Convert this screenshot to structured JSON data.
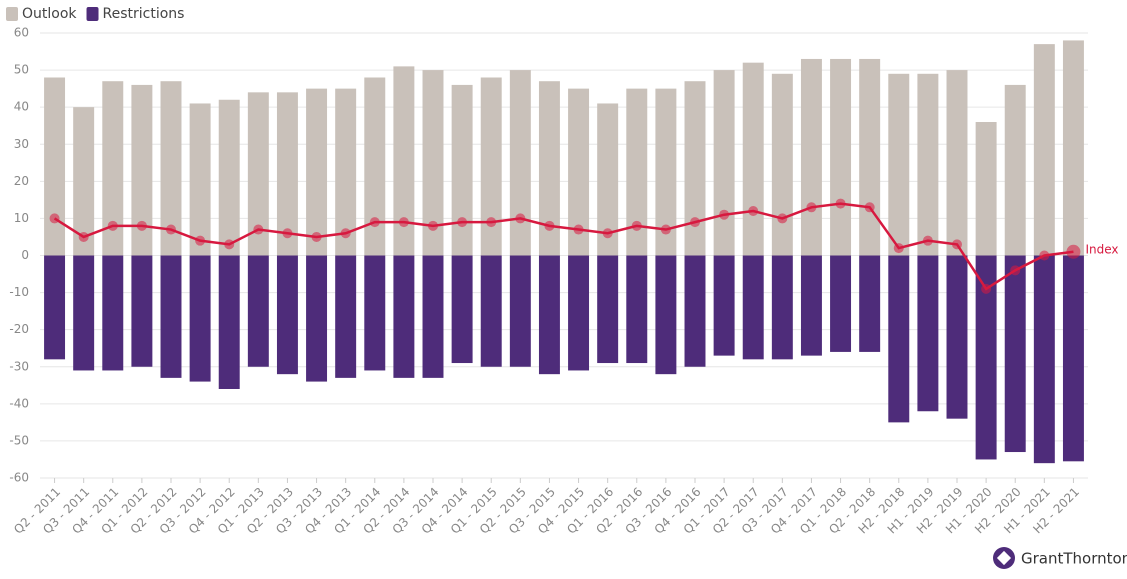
{
  "chart_data": {
    "type": "bar",
    "stacked": false,
    "categories": [
      "Q2 - 2011",
      "Q3 - 2011",
      "Q4 - 2011",
      "Q1 - 2012",
      "Q2 - 2012",
      "Q3 - 2012",
      "Q4 - 2012",
      "Q1 - 2013",
      "Q2 - 2013",
      "Q3 - 2013",
      "Q4 - 2013",
      "Q1 - 2014",
      "Q2 - 2014",
      "Q3 - 2014",
      "Q4 - 2014",
      "Q1 - 2015",
      "Q2 - 2015",
      "Q3 - 2015",
      "Q4 - 2015",
      "Q1 - 2016",
      "Q2 - 2016",
      "Q3 - 2016",
      "Q4 - 2016",
      "Q1 - 2017",
      "Q2 - 2017",
      "Q3 - 2017",
      "Q4 - 2017",
      "Q1 - 2018",
      "Q2 - 2018",
      "H2 - 2018",
      "H1 - 2019",
      "H2 - 2019",
      "H1 - 2020",
      "H2 - 2020",
      "H1 - 2021",
      "H2 - 2021"
    ],
    "series": [
      {
        "name": "Outlook",
        "type": "bar",
        "color": "#c9c1ba",
        "values": [
          48,
          40,
          47,
          46,
          47,
          41,
          42,
          44,
          44,
          45,
          45,
          48,
          51,
          50,
          46,
          48,
          50,
          47,
          45,
          41,
          45,
          45,
          47,
          50,
          52,
          49,
          53,
          53,
          53,
          49,
          49,
          50,
          36,
          46,
          57,
          58
        ]
      },
      {
        "name": "Restrictions",
        "type": "bar",
        "color": "#4e2c7a",
        "values": [
          -28,
          -31,
          -31,
          -30,
          -33,
          -34,
          -36,
          -30,
          -32,
          -34,
          -33,
          -31,
          -33,
          -33,
          -29,
          -30,
          -30,
          -32,
          -31,
          -29,
          -29,
          -32,
          -30,
          -27,
          -28,
          -28,
          -27,
          -26,
          -26,
          -45,
          -42,
          -44,
          -55,
          -53,
          -56,
          -55.5
        ]
      },
      {
        "name": "Index",
        "type": "line",
        "color": "#d7193f",
        "values": [
          10,
          5,
          8,
          8,
          7,
          4,
          3,
          7,
          6,
          5,
          6,
          9,
          9,
          8,
          9,
          9,
          10,
          8,
          7,
          6,
          8,
          7,
          9,
          11,
          12,
          10,
          13,
          14,
          13,
          2,
          4,
          3,
          -9,
          -4,
          0,
          1
        ]
      }
    ],
    "ylim": [
      -60,
      60
    ],
    "yticks": [
      -60,
      -50,
      -40,
      -30,
      -20,
      -10,
      0,
      10,
      20,
      30,
      40,
      50,
      60
    ],
    "grid": true,
    "legend": "top-left",
    "logo": "GrantThornton"
  }
}
